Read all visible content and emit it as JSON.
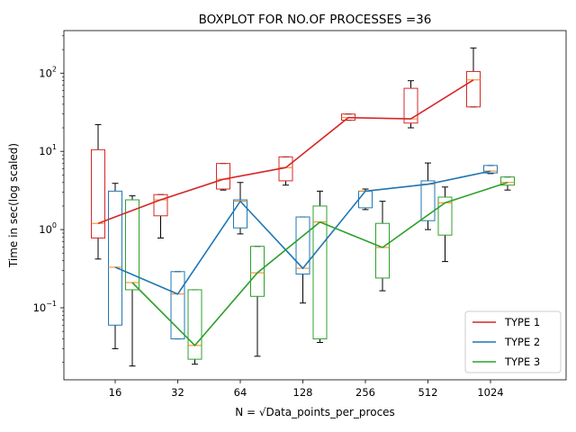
{
  "chart_data": {
    "type": "box",
    "title": "BOXPLOT FOR NO.OF PROCESSES =36",
    "xlabel": "N = √Data_points_per_proces",
    "ylabel": "Time in sec(log scaled)",
    "yscale": "log",
    "ylim": [
      0.012,
      350
    ],
    "yticks": [
      {
        "base": "10",
        "exp": "−1",
        "value": 0.1
      },
      {
        "base": "10",
        "exp": "0",
        "value": 1
      },
      {
        "base": "10",
        "exp": "1",
        "value": 10
      },
      {
        "base": "10",
        "exp": "2",
        "value": 100
      }
    ],
    "categories": [
      "16",
      "32",
      "64",
      "128",
      "256",
      "512",
      "1024"
    ],
    "legend_position": "lower-right",
    "series": [
      {
        "name": "TYPE 1",
        "color": "#d62728",
        "boxes": [
          {
            "whislo": 0.42,
            "q1": 0.78,
            "med": 1.2,
            "q3": 10.5,
            "whishi": 22
          },
          {
            "whislo": 0.78,
            "q1": 1.5,
            "med": 2.4,
            "q3": 2.8,
            "whishi": 2.8
          },
          {
            "whislo": 3.2,
            "q1": 3.3,
            "med": 4.4,
            "q3": 7.0,
            "whishi": 7.0
          },
          {
            "whislo": 3.7,
            "q1": 4.2,
            "med": 6.2,
            "q3": 8.5,
            "whishi": 8.5
          },
          {
            "whislo": 25,
            "q1": 25,
            "med": 27,
            "q3": 30,
            "whishi": 30
          },
          {
            "whislo": 20,
            "q1": 23,
            "med": 26,
            "q3": 64,
            "whishi": 80
          },
          {
            "whislo": 37,
            "q1": 37,
            "med": 82,
            "q3": 105,
            "whishi": 210
          }
        ]
      },
      {
        "name": "TYPE 2",
        "color": "#1f77b4",
        "boxes": [
          {
            "whislo": 0.03,
            "q1": 0.06,
            "med": 0.33,
            "q3": 3.1,
            "whishi": 3.9
          },
          {
            "whislo": 0.04,
            "q1": 0.04,
            "med": 0.15,
            "q3": 0.29,
            "whishi": 0.29
          },
          {
            "whislo": 0.88,
            "q1": 1.05,
            "med": 2.3,
            "q3": 2.4,
            "whishi": 4.0
          },
          {
            "whislo": 0.115,
            "q1": 0.27,
            "med": 0.32,
            "q3": 1.45,
            "whishi": 1.45
          },
          {
            "whislo": 1.8,
            "q1": 1.9,
            "med": 3.1,
            "q3": 3.1,
            "whishi": 3.3
          },
          {
            "whislo": 1.0,
            "q1": 1.3,
            "med": 3.8,
            "q3": 4.2,
            "whishi": 7.1
          },
          {
            "whislo": 5.2,
            "q1": 5.3,
            "med": 5.6,
            "q3": 6.6,
            "whishi": 6.6
          }
        ]
      },
      {
        "name": "TYPE 3",
        "color": "#2ca02c",
        "boxes": [
          {
            "whislo": 0.018,
            "q1": 0.17,
            "med": 0.21,
            "q3": 2.4,
            "whishi": 2.7
          },
          {
            "whislo": 0.019,
            "q1": 0.022,
            "med": 0.033,
            "q3": 0.17,
            "whishi": 0.17
          },
          {
            "whislo": 0.024,
            "q1": 0.14,
            "med": 0.28,
            "q3": 0.61,
            "whishi": 0.61
          },
          {
            "whislo": 0.036,
            "q1": 0.04,
            "med": 1.25,
            "q3": 2.0,
            "whishi": 3.1
          },
          {
            "whislo": 0.165,
            "q1": 0.24,
            "med": 0.59,
            "q3": 1.2,
            "whishi": 2.3
          },
          {
            "whislo": 0.39,
            "q1": 0.85,
            "med": 2.2,
            "q3": 2.6,
            "whishi": 3.5
          },
          {
            "whislo": 3.2,
            "q1": 3.7,
            "med": 4.0,
            "q3": 4.7,
            "whishi": 4.7
          }
        ]
      }
    ]
  }
}
